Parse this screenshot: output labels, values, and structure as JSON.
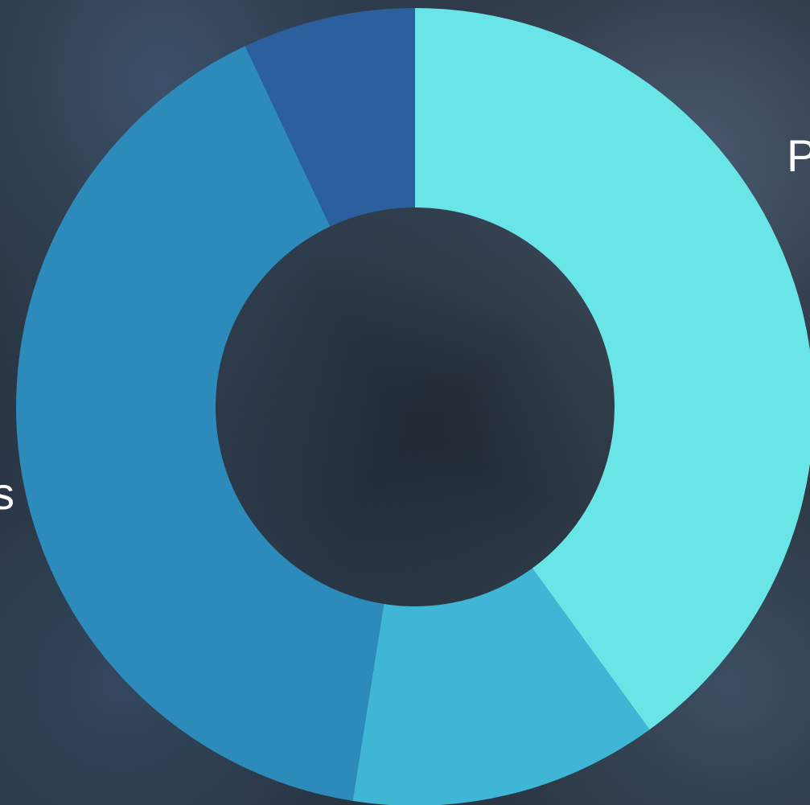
{
  "chart_data": {
    "type": "pie",
    "donut": true,
    "categories": [
      "P",
      "",
      "s",
      ""
    ],
    "values": [
      40,
      12.5,
      40.5,
      7
    ],
    "colors": [
      "#69e5e8",
      "#3fb6d6",
      "#2d8bbb",
      "#2c5f9e"
    ],
    "start_angle_deg": 0,
    "direction": "clockwise",
    "legend": "none"
  },
  "labels": {
    "right": "P",
    "left": "s"
  },
  "background": {
    "description_color": "#1f262d"
  }
}
